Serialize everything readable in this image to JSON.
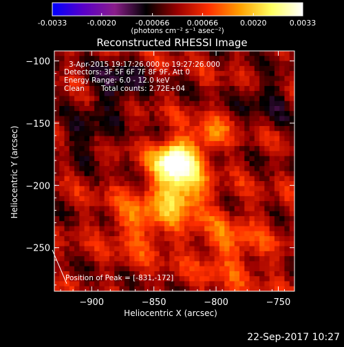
{
  "chart_data": {
    "type": "heatmap",
    "title": "Reconstructed RHESSI Image",
    "xlabel": "Heliocentric X (arcsec)",
    "ylabel": "Heliocentric Y (arcsec)",
    "xlim": [
      -930,
      -737
    ],
    "ylim": [
      -285,
      -92
    ],
    "x_ticks": [
      -900,
      -850,
      -800,
      -750
    ],
    "y_ticks": [
      -100,
      -150,
      -200,
      -250
    ],
    "colorbar": {
      "label": "(photons cm⁻² s⁻¹ asec⁻²)",
      "range": [
        -0.0033,
        0.0033
      ],
      "ticks": [
        "-0.0033",
        "-0.0020",
        "-0.00066",
        "0.00066",
        "0.0020",
        "0.0033"
      ],
      "colors": [
        "#0000ff",
        "#5a00c8",
        "#8a1d8a",
        "#000000",
        "#9a0000",
        "#ff3000",
        "#ffa000",
        "#ffff60",
        "#ffffff"
      ]
    },
    "annotations": {
      "time_range": "3-Apr-2015 19:17:26.000 to 19:27:26.000",
      "detectors": "Detectors: 3F 5F 6F 7F 8F 9F, Att 0",
      "energy": "Energy Range: 6.0 - 12.0 keV",
      "clean": "Clean",
      "counts": "Total counts: 2.72E+04",
      "peak": "Position of Peak = [-831,-172]"
    },
    "peak": {
      "x": -831,
      "y": -172
    },
    "sources": [
      {
        "x": -833,
        "y": -180,
        "amplitude": 0.0033,
        "sigma": 12
      },
      {
        "x": -828,
        "y": -205,
        "amplitude": 0.0022,
        "sigma": 14
      },
      {
        "x": -805,
        "y": -160,
        "amplitude": 0.0014,
        "sigma": 10
      },
      {
        "x": -860,
        "y": -230,
        "amplitude": 0.0012,
        "sigma": 18
      },
      {
        "x": -790,
        "y": -250,
        "amplitude": 0.001,
        "sigma": 22
      },
      {
        "x": -880,
        "y": -120,
        "amplitude": -0.0012,
        "sigma": 14
      },
      {
        "x": -905,
        "y": -160,
        "amplitude": -0.001,
        "sigma": 12
      },
      {
        "x": -760,
        "y": -130,
        "amplitude": -0.0008,
        "sigma": 14
      }
    ],
    "date_stamp": "22-Sep-2017 10:27"
  }
}
